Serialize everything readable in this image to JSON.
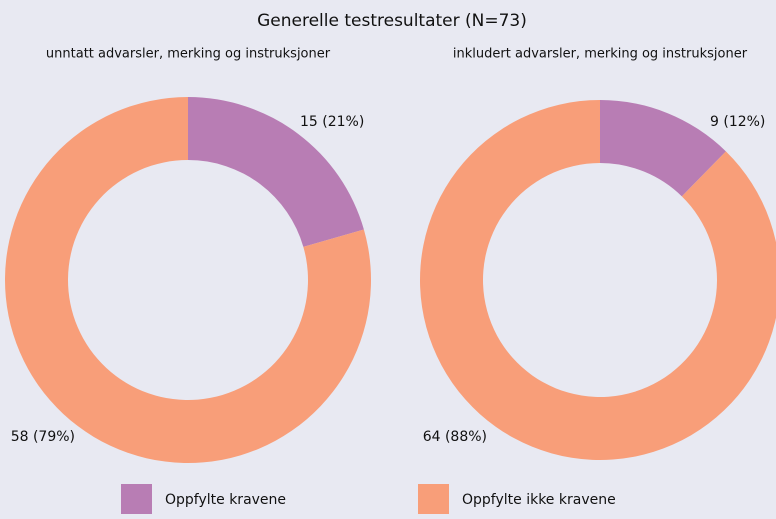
{
  "title": "Generelle testresultater (N=73)",
  "chart_data": [
    {
      "type": "pie",
      "subtitle": "unntatt advarsler, merking og instruksjoner",
      "categories": [
        "Oppfylte kravene",
        "Oppfylte ikke kravene"
      ],
      "values": [
        15,
        58
      ],
      "value_labels": [
        "15 (21%)",
        "58 (79%)"
      ],
      "colors": [
        "#b87db4",
        "#f89e79"
      ]
    },
    {
      "type": "pie",
      "subtitle": "inkludert advarsler, merking og instruksjoner",
      "categories": [
        "Oppfylte kravene",
        "Oppfylte ikke kravene"
      ],
      "values": [
        9,
        64
      ],
      "value_labels": [
        "9 (12%)",
        "64 (88%)"
      ],
      "colors": [
        "#b87db4",
        "#f89e79"
      ]
    }
  ]
}
